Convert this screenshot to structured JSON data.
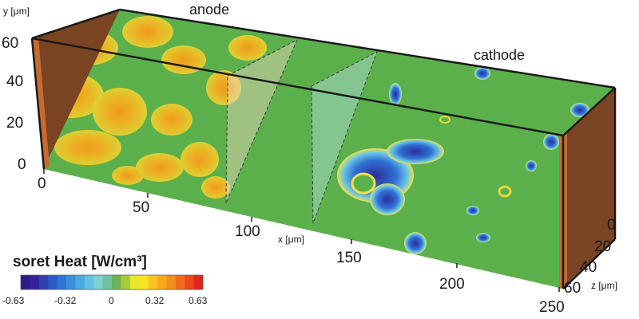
{
  "labels": {
    "anode": "anode",
    "cathode": "cathode",
    "x_axis": "x [μm]",
    "y_axis": "y [μm]",
    "z_axis": "z [μm]"
  },
  "axes": {
    "x_ticks": [
      "0",
      "50",
      "100",
      "150",
      "200",
      "250"
    ],
    "y_ticks": [
      "60",
      "40",
      "20",
      "0"
    ],
    "z_ticks": [
      "0",
      "20",
      "40",
      "60"
    ]
  },
  "colorbar": {
    "title": "soret Heat [W/cm³]",
    "ticks": [
      "-0.63",
      "-0.32",
      "0",
      "0.32",
      "0.63"
    ],
    "range": [
      -0.63,
      0.63
    ],
    "colors": [
      "#2d1a86",
      "#33239a",
      "#2f3eb0",
      "#2b5bc4",
      "#2f76d2",
      "#3a90dc",
      "#4aa8e2",
      "#62c0e4",
      "#7fd0d2",
      "#6ec39e",
      "#6ab45a",
      "#a7cc3a",
      "#e9e82b",
      "#fbe225",
      "#fbc521",
      "#f8aa1f",
      "#f38d1d",
      "#ee6d1c",
      "#e84a1b",
      "#e2251a"
    ]
  },
  "colors": {
    "background_field": "#5cb04c",
    "end_face": "#7a4422",
    "end_face_edge": "#c96a2e",
    "warm_patch": "#e8b224",
    "cool_patch": "#2f5bd0"
  }
}
